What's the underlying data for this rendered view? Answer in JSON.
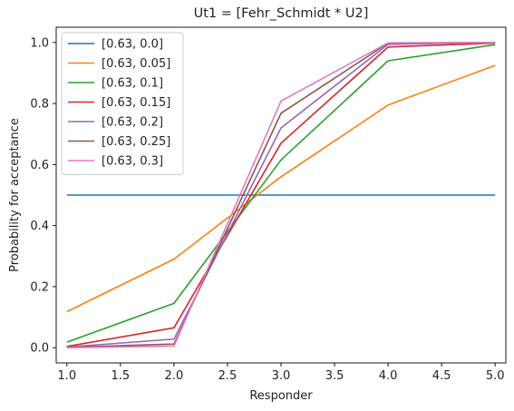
{
  "chart_data": {
    "type": "line",
    "title": "Ut1 = [Fehr_Schmidt * U2]",
    "xlabel": "Responder",
    "ylabel": "Probability for acceptance",
    "xlim": [
      0.9,
      5.1
    ],
    "ylim": [
      -0.05,
      1.05
    ],
    "xticks": [
      "1.0",
      "1.5",
      "2.0",
      "2.5",
      "3.0",
      "3.5",
      "4.0",
      "4.5",
      "5.0"
    ],
    "yticks": [
      "0.0",
      "0.2",
      "0.4",
      "0.6",
      "0.8",
      "1.0"
    ],
    "grid": false,
    "legend_position": "top-left",
    "x": [
      1,
      2,
      3,
      4,
      5
    ],
    "series": [
      {
        "name": "[0.63, 0.0]",
        "color": "#1f77b4",
        "values": [
          0.5,
          0.5,
          0.5,
          0.5,
          0.5
        ]
      },
      {
        "name": "[0.63, 0.05]",
        "color": "#ff7f0e",
        "values": [
          0.118,
          0.29,
          0.56,
          0.795,
          0.925
        ]
      },
      {
        "name": "[0.63, 0.1]",
        "color": "#2ca02c",
        "values": [
          0.018,
          0.145,
          0.615,
          0.94,
          0.993
        ]
      },
      {
        "name": "[0.63, 0.15]",
        "color": "#d62728",
        "values": [
          0.004,
          0.065,
          0.67,
          0.985,
          0.998
        ]
      },
      {
        "name": "[0.63, 0.2]",
        "color": "#9467bd",
        "values": [
          0.002,
          0.028,
          0.72,
          0.994,
          1.0
        ]
      },
      {
        "name": "[0.63, 0.25]",
        "color": "#8c564b",
        "values": [
          0.001,
          0.012,
          0.768,
          0.998,
          1.0
        ]
      },
      {
        "name": "[0.63, 0.3]",
        "color": "#e377c2",
        "values": [
          0.0,
          0.005,
          0.808,
          0.999,
          1.0
        ]
      }
    ]
  }
}
